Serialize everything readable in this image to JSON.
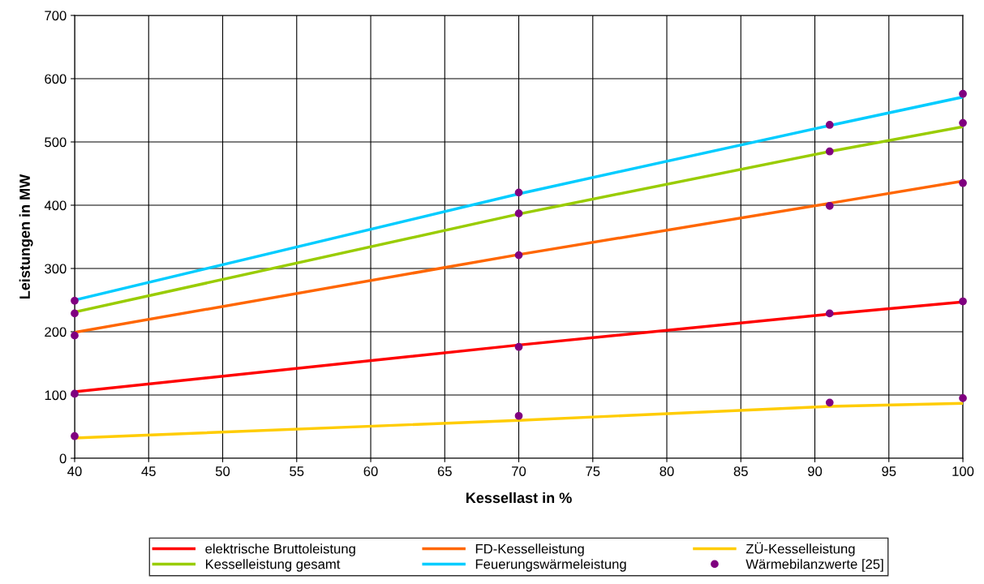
{
  "chart_data": {
    "type": "line",
    "xlabel": "Kessellast in %",
    "ylabel": "Leistungen in MW",
    "xlim": [
      40,
      100
    ],
    "xticks": [
      40,
      45,
      50,
      55,
      60,
      65,
      70,
      75,
      80,
      85,
      90,
      95,
      100
    ],
    "ylim": [
      0,
      700
    ],
    "yticks": [
      0,
      100,
      200,
      300,
      400,
      500,
      600,
      700
    ],
    "grid": true,
    "legend": "bottom",
    "marker": "none",
    "line_style": "solid",
    "series": [
      {
        "name": "elektrische Bruttoleistung",
        "color": "#ff0000",
        "x": [
          40,
          70,
          91,
          100
        ],
        "values": [
          105,
          179,
          228,
          247
        ]
      },
      {
        "name": "FD-Kesselleistung",
        "color": "#ff6600",
        "x": [
          40,
          70,
          91,
          100
        ],
        "values": [
          199,
          322,
          403,
          438
        ]
      },
      {
        "name": "ZÜ-Kesselleistung",
        "color": "#ffcc00",
        "x": [
          40,
          70,
          91,
          100
        ],
        "values": [
          32,
          60,
          82,
          87
        ]
      },
      {
        "name": "Kesselleistung gesamt",
        "color": "#99cc00",
        "x": [
          40,
          70,
          91,
          100
        ],
        "values": [
          231,
          386,
          485,
          524
        ]
      },
      {
        "name": "Feuerungswärmeleistung",
        "color": "#00ccff",
        "x": [
          40,
          70,
          91,
          100
        ],
        "values": [
          250,
          418,
          526,
          571
        ]
      },
      {
        "name": "Wärmebilanzwerte [25]",
        "type": "scatter",
        "marker": "circle",
        "color": "#800080",
        "x": [
          40,
          40,
          40,
          40,
          40,
          70,
          70,
          70,
          70,
          70,
          91,
          91,
          91,
          91,
          91,
          100,
          100,
          100,
          100,
          100
        ],
        "values": [
          35,
          102,
          194,
          229,
          249,
          67,
          176,
          321,
          387,
          420,
          88,
          229,
          399,
          485,
          527,
          95,
          248,
          435,
          530,
          576
        ]
      }
    ]
  }
}
